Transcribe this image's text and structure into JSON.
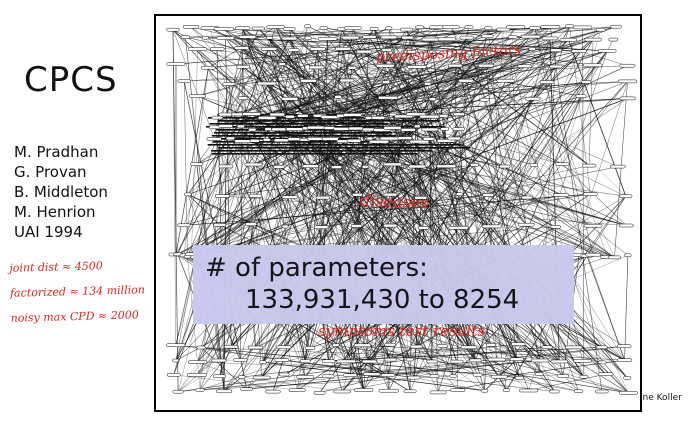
{
  "slide": {
    "title": "CPCS",
    "citation": [
      "M. Pradhan",
      "G. Provan",
      "B. Middleton",
      "M. Henrion",
      "UAI 1994"
    ],
    "handwritten_notes": [
      "joint dist ≈ 4500",
      "factorized ≈ 134 million",
      "noisy max CPD ≈ 2000"
    ],
    "network_labels": {
      "top": "predisposing factors",
      "middle": "diseases",
      "bottom": "symptoms    test results"
    },
    "parameters": {
      "label": "# of parameters:",
      "value": "133,931,430 to 8254"
    },
    "credit": "ıne Koller"
  },
  "colors": {
    "annotation_red": "#e0241a",
    "highlight_box": "#c9c9ef",
    "network_ink": "#111111"
  }
}
